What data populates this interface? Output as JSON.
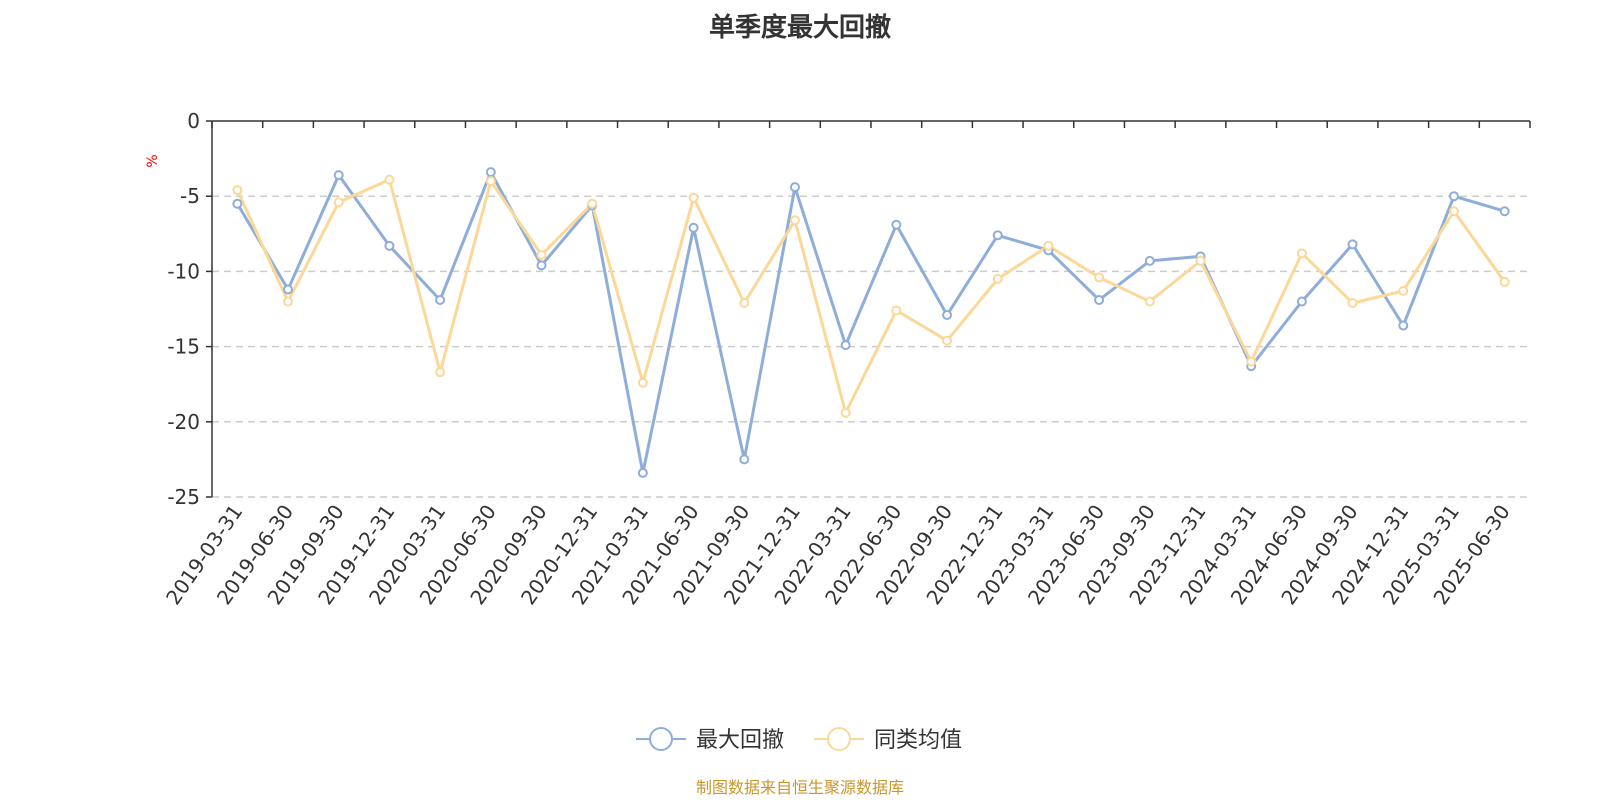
{
  "chart_data": {
    "type": "line",
    "title": "单季度最大回撤",
    "ylabel": "%",
    "ylim": [
      -25,
      0
    ],
    "yticks": [
      0,
      -5,
      -10,
      -15,
      -20,
      -25
    ],
    "grid": true,
    "legend_position": "bottom",
    "categories": [
      "2019-03-31",
      "2019-06-30",
      "2019-09-30",
      "2019-12-31",
      "2020-03-31",
      "2020-06-30",
      "2020-09-30",
      "2020-12-31",
      "2021-03-31",
      "2021-06-30",
      "2021-09-30",
      "2021-12-31",
      "2022-03-31",
      "2022-06-30",
      "2022-09-30",
      "2022-12-31",
      "2023-03-31",
      "2023-06-30",
      "2023-09-30",
      "2023-12-31",
      "2024-03-31",
      "2024-06-30",
      "2024-09-30",
      "2024-12-31",
      "2025-03-31",
      "2025-06-30"
    ],
    "series": [
      {
        "name": "最大回撤",
        "color": "#8eaed9",
        "values": [
          -5.5,
          -11.2,
          -3.6,
          -8.3,
          -11.9,
          -3.4,
          -9.6,
          -5.6,
          -23.4,
          -7.1,
          -22.5,
          -4.4,
          -14.9,
          -6.9,
          -12.9,
          -7.6,
          -8.6,
          -11.9,
          -9.3,
          -9.0,
          -16.3,
          -12.0,
          -8.2,
          -13.6,
          -5.0,
          -6.0
        ]
      },
      {
        "name": "同类均值",
        "color": "#fcd898",
        "values": [
          -4.6,
          -12.0,
          -5.4,
          -3.9,
          -16.7,
          -4.0,
          -8.9,
          -5.5,
          -17.4,
          -5.1,
          -12.1,
          -6.6,
          -19.4,
          -12.6,
          -14.6,
          -10.5,
          -8.3,
          -10.4,
          -12.0,
          -9.3,
          -16.0,
          -8.8,
          -12.1,
          -11.3,
          -6.0,
          -10.7
        ]
      }
    ]
  },
  "source": {
    "text": "制图数据来自恒生聚源数据库",
    "color": "#c8962d"
  }
}
